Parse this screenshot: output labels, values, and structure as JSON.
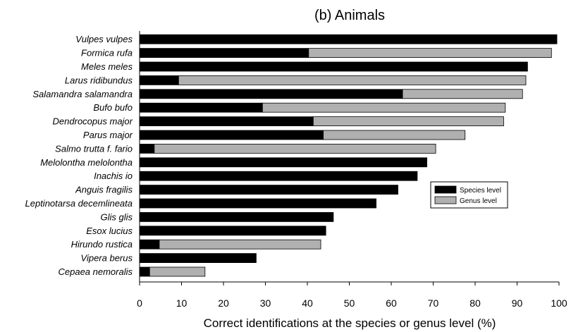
{
  "chart_data": {
    "type": "bar",
    "orientation": "horizontal",
    "stacked": true,
    "title": "(b) Animals",
    "xlabel": "Correct identifications at the species or genus level (%)",
    "ylabel": "",
    "xlim": [
      0,
      100
    ],
    "x_ticks": [
      "0",
      "10",
      "20",
      "30",
      "40",
      "50",
      "60",
      "70",
      "80",
      "90",
      "100"
    ],
    "grid": false,
    "legend_position": "right",
    "categories": [
      "Vulpes vulpes",
      "Formica rufa",
      "Meles meles",
      "Larus ridibundus",
      "Salamandra salamandra",
      "Bufo bufo",
      "Dendrocopus major",
      "Parus major",
      "Salmo trutta f. fario",
      "Melolontha melolontha",
      "Inachis io",
      "Anguis fragilis",
      "Leptinotarsa decemlineata",
      "Glis glis",
      "Esox lucius",
      "Hirundo rustica",
      "Vipera berus",
      "Cepaea nemoralis"
    ],
    "series": [
      {
        "name": "Species level",
        "color": "#000000",
        "values": [
          99.5,
          40.3,
          92.5,
          9.3,
          62.7,
          29.3,
          41.4,
          43.8,
          3.5,
          68.5,
          66.2,
          61.6,
          56.4,
          46.2,
          44.4,
          4.7,
          27.8,
          2.4
        ]
      },
      {
        "name": "Genus level",
        "color": "#b0b0b0",
        "values": [
          0,
          57.9,
          0,
          82.8,
          28.6,
          57.9,
          45.4,
          33.8,
          67.1,
          0,
          0,
          0,
          0,
          0,
          0,
          38.5,
          0,
          13.2
        ]
      }
    ]
  }
}
